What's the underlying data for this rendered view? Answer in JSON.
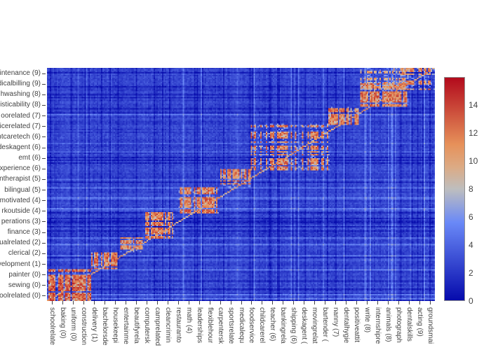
{
  "figure": {
    "background": "#ffffff",
    "tick_color": "#444444"
  },
  "chart_data": {
    "type": "heatmap",
    "title": "",
    "xlabel": "",
    "ylabel": "",
    "x_tick_labels": [
      "schoolrelate",
      "baking (0)",
      "uniform (0)",
      "construction",
      "delivery (1)",
      "bachelorsde",
      "housekeepi",
      "entertainme",
      "beautifyrela",
      "computersk",
      "camprelated",
      "cleancrimin",
      "restauranto",
      "math (4)",
      "leaderships",
      "flexiblehour",
      "carpentersk",
      "sportsrelate",
      "medicalequ",
      "foodservice",
      "childcarerel",
      "teacher (6)",
      "bankingrela",
      "shipping (6)",
      "deskagent (",
      "movingrelat",
      "bartender (",
      "nanny (7)",
      "dentalhygie",
      "positiveattit",
      "write (8)",
      "internshipre",
      "animals (8)",
      "photograph",
      "dentalskills",
      "acting (9)",
      "groundsmai"
    ],
    "y_tick_labels": [
      "intenance (9)",
      "dicalbilling (9)",
      "hwashing (8)",
      "isticability (8)",
      "oorelated (7)",
      "icerelated (7)",
      "ntcaretech (6)",
      "deskagent (6)",
      "emt (6)",
      "xperience (6)",
      "ntherapist (5)",
      "bilingual (5)",
      "motivated (4)",
      "rkoutside (4)",
      "perations (3)",
      "finance (3)",
      "ualrelated (2)",
      "clerical (2)",
      "velopment (1)",
      "painter (0)",
      "sewing (0)",
      "oolrelated (0)"
    ],
    "colorbar": {
      "tick_labels": [
        "0",
        "2",
        "4",
        "6",
        "8",
        "10",
        "12",
        "14"
      ],
      "tick_values": [
        0,
        2,
        4,
        6,
        8,
        10,
        12,
        14
      ],
      "zmin": 0,
      "zmax": 16,
      "border_color": "#909090"
    },
    "colorscale": [
      [
        0.0,
        "#050AAC"
      ],
      [
        0.35,
        "#6A89F7"
      ],
      [
        0.5,
        "#BEBEBE"
      ],
      [
        0.6,
        "#DCAA84"
      ],
      [
        0.7,
        "#E6915A"
      ],
      [
        1.0,
        "#B20A1C"
      ]
    ],
    "grid": {
      "rows": 168,
      "cols": 280,
      "seed": 12345
    },
    "noise": {
      "base": 1.5,
      "cell_amp": 1.4,
      "base_max": 6.8,
      "row_dark_p": 0.1,
      "row_dark": -1.3,
      "row_light_p": 0.12,
      "row_light_min": 1.4,
      "row_light_amp": 1.6,
      "col_dark_p": 0.12,
      "col_dark": -1.3,
      "col_light_p": 0.1,
      "col_light_min": 1.3,
      "col_light_amp": 1.4
    },
    "diagonal": {
      "half_width": 0.003,
      "value": 10.0
    },
    "blocks": [
      {
        "name": "cluster-0",
        "fx": [
          0.0,
          0.115
        ],
        "fy": [
          0.0,
          0.138
        ],
        "dr": 0.85,
        "dc": 0.8,
        "intensity": 13.0
      },
      {
        "name": "cluster-1",
        "fx": [
          0.115,
          0.182
        ],
        "fy": [
          0.138,
          0.21
        ],
        "dr": 0.8,
        "dc": 0.8,
        "intensity": 12.2
      },
      {
        "name": "cluster-2",
        "fx": [
          0.188,
          0.247
        ],
        "fy": [
          0.207,
          0.273
        ],
        "dr": 0.75,
        "dc": 0.75,
        "intensity": 11.6
      },
      {
        "name": "cluster-3",
        "fx": [
          0.253,
          0.327
        ],
        "fy": [
          0.267,
          0.378
        ],
        "dr": 0.8,
        "dc": 0.75,
        "intensity": 12.0
      },
      {
        "name": "cluster-4",
        "fx": [
          0.338,
          0.442
        ],
        "fy": [
          0.375,
          0.489
        ],
        "dr": 0.85,
        "dc": 0.8,
        "intensity": 12.2
      },
      {
        "name": "cluster-5",
        "fx": [
          0.446,
          0.525
        ],
        "fy": [
          0.483,
          0.565
        ],
        "dr": 0.8,
        "dc": 0.75,
        "intensity": 12.0
      },
      {
        "name": "cluster-6",
        "fx": [
          0.525,
          0.727
        ],
        "fy": [
          0.559,
          0.76
        ],
        "dr": 0.7,
        "dc": 0.45,
        "intensity": 12.0
      },
      {
        "name": "cluster-7",
        "fx": [
          0.724,
          0.805
        ],
        "fy": [
          0.757,
          0.835
        ],
        "dr": 0.8,
        "dc": 0.78,
        "intensity": 12.0
      },
      {
        "name": "cluster-8",
        "fx": [
          0.807,
          0.933
        ],
        "fy": [
          0.832,
          0.94
        ],
        "dr": 0.85,
        "dc": 0.8,
        "intensity": 12.3
      },
      {
        "name": "cluster-9",
        "fx": [
          0.892,
          1.0
        ],
        "fy": [
          0.907,
          1.0
        ],
        "dr": 0.6,
        "dc": 0.5,
        "intensity": 11.5
      },
      {
        "name": "cross-8-9",
        "fx": [
          0.807,
          0.933
        ],
        "fy": [
          0.907,
          1.0
        ],
        "dr": 0.5,
        "dc": 0.5,
        "intensity": 10.5
      }
    ]
  }
}
